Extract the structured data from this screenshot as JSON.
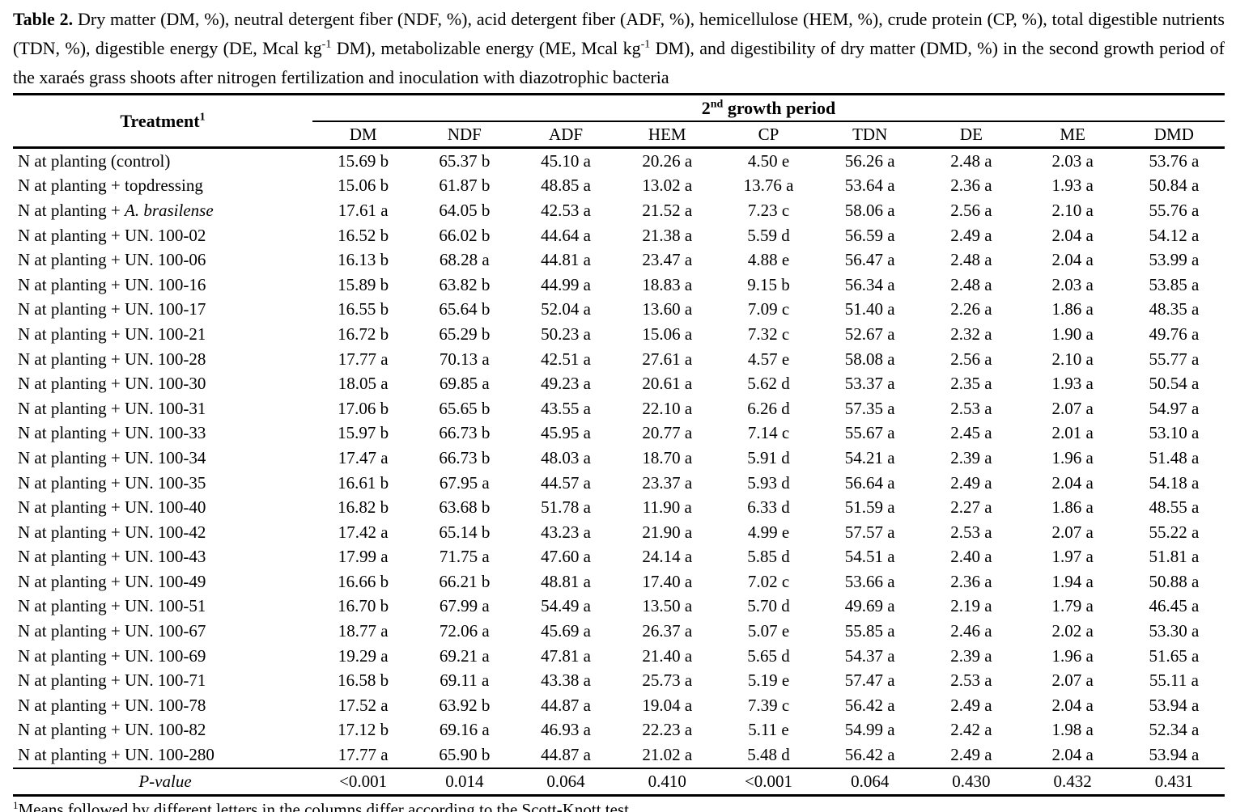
{
  "caption": {
    "label": "Table 2.",
    "seg1": " Dry matter (DM, %), neutral detergent fiber (NDF, %), acid detergent fiber (ADF, %), hemicellulose (HEM, %), crude protein (CP, %), total digestible nutrients (TDN, %), digestible energy (DE, Mcal kg",
    "sup1": "-1",
    "seg2": " DM), metabolizable energy (ME, Mcal kg",
    "sup2": "-1",
    "seg3": " DM), and digestibility of dry matter (DMD, %) in the second growth period of the xaraés grass shoots after nitrogen fertilization and inoculation with diazotrophic bacteria"
  },
  "table": {
    "treatment_header": "Treatment",
    "treatment_header_sup": "1",
    "group_header_num": "2",
    "group_header_sup": "nd",
    "group_header_rest": " growth period",
    "columns": [
      "DM",
      "NDF",
      "ADF",
      "HEM",
      "CP",
      "TDN",
      "DE",
      "ME",
      "DMD"
    ],
    "rows": [
      {
        "treatment": "N at planting (control)",
        "treatment_italic": "",
        "values": [
          "15.69 b",
          "65.37 b",
          "45.10 a",
          "20.26 a",
          "4.50 e",
          "56.26 a",
          "2.48 a",
          "2.03 a",
          "53.76 a"
        ]
      },
      {
        "treatment": "N at planting + topdressing",
        "treatment_italic": "",
        "values": [
          "15.06 b",
          "61.87 b",
          "48.85 a",
          "13.02 a",
          "13.76 a",
          "53.64 a",
          "2.36 a",
          "1.93 a",
          "50.84 a"
        ]
      },
      {
        "treatment": "N at planting + ",
        "treatment_italic": "A. brasilense",
        "values": [
          "17.61 a",
          "64.05 b",
          "42.53 a",
          "21.52 a",
          "7.23 c",
          "58.06 a",
          "2.56 a",
          "2.10 a",
          "55.76 a"
        ]
      },
      {
        "treatment": "N at planting + UN. 100-02",
        "treatment_italic": "",
        "values": [
          "16.52 b",
          "66.02 b",
          "44.64 a",
          "21.38 a",
          "5.59 d",
          "56.59 a",
          "2.49 a",
          "2.04 a",
          "54.12 a"
        ]
      },
      {
        "treatment": "N at planting + UN. 100-06",
        "treatment_italic": "",
        "values": [
          "16.13 b",
          "68.28 a",
          "44.81 a",
          "23.47 a",
          "4.88 e",
          "56.47 a",
          "2.48 a",
          "2.04 a",
          "53.99 a"
        ]
      },
      {
        "treatment": "N at planting + UN. 100-16",
        "treatment_italic": "",
        "values": [
          "15.89 b",
          "63.82 b",
          "44.99 a",
          "18.83 a",
          "9.15 b",
          "56.34 a",
          "2.48 a",
          "2.03 a",
          "53.85 a"
        ]
      },
      {
        "treatment": "N at planting + UN. 100-17",
        "treatment_italic": "",
        "values": [
          "16.55 b",
          "65.64 b",
          "52.04 a",
          "13.60 a",
          "7.09 c",
          "51.40 a",
          "2.26 a",
          "1.86 a",
          "48.35 a"
        ]
      },
      {
        "treatment": "N at planting + UN. 100-21",
        "treatment_italic": "",
        "values": [
          "16.72 b",
          "65.29 b",
          "50.23 a",
          "15.06 a",
          "7.32 c",
          "52.67 a",
          "2.32 a",
          "1.90 a",
          "49.76 a"
        ]
      },
      {
        "treatment": "N at planting + UN. 100-28",
        "treatment_italic": "",
        "values": [
          "17.77 a",
          "70.13 a",
          "42.51 a",
          "27.61 a",
          "4.57 e",
          "58.08 a",
          "2.56 a",
          "2.10 a",
          "55.77 a"
        ]
      },
      {
        "treatment": "N at planting + UN. 100-30",
        "treatment_italic": "",
        "values": [
          "18.05 a",
          "69.85 a",
          "49.23 a",
          "20.61 a",
          "5.62 d",
          "53.37 a",
          "2.35 a",
          "1.93 a",
          "50.54 a"
        ]
      },
      {
        "treatment": "N at planting + UN. 100-31",
        "treatment_italic": "",
        "values": [
          "17.06 b",
          "65.65 b",
          "43.55 a",
          "22.10 a",
          "6.26 d",
          "57.35 a",
          "2.53 a",
          "2.07 a",
          "54.97 a"
        ]
      },
      {
        "treatment": "N at planting + UN. 100-33",
        "treatment_italic": "",
        "values": [
          "15.97 b",
          "66.73 b",
          "45.95 a",
          "20.77 a",
          "7.14 c",
          "55.67 a",
          "2.45 a",
          "2.01 a",
          "53.10 a"
        ]
      },
      {
        "treatment": "N at planting + UN. 100-34",
        "treatment_italic": "",
        "values": [
          "17.47 a",
          "66.73 b",
          "48.03 a",
          "18.70 a",
          "5.91 d",
          "54.21 a",
          "2.39 a",
          "1.96 a",
          "51.48 a"
        ]
      },
      {
        "treatment": "N at planting + UN. 100-35",
        "treatment_italic": "",
        "values": [
          "16.61 b",
          "67.95 a",
          "44.57 a",
          "23.37 a",
          "5.93 d",
          "56.64 a",
          "2.49 a",
          "2.04 a",
          "54.18 a"
        ]
      },
      {
        "treatment": "N at planting + UN. 100-40",
        "treatment_italic": "",
        "values": [
          "16.82 b",
          "63.68 b",
          "51.78 a",
          "11.90 a",
          "6.33 d",
          "51.59 a",
          "2.27 a",
          "1.86 a",
          "48.55 a"
        ]
      },
      {
        "treatment": "N at planting + UN. 100-42",
        "treatment_italic": "",
        "values": [
          "17.42 a",
          "65.14 b",
          "43.23 a",
          "21.90 a",
          "4.99 e",
          "57.57 a",
          "2.53 a",
          "2.07 a",
          "55.22 a"
        ]
      },
      {
        "treatment": "N at planting + UN. 100-43",
        "treatment_italic": "",
        "values": [
          "17.99 a",
          "71.75 a",
          "47.60 a",
          "24.14 a",
          "5.85 d",
          "54.51 a",
          "2.40 a",
          "1.97 a",
          "51.81 a"
        ]
      },
      {
        "treatment": "N at planting + UN. 100-49",
        "treatment_italic": "",
        "values": [
          "16.66 b",
          "66.21 b",
          "48.81 a",
          "17.40 a",
          "7.02 c",
          "53.66 a",
          "2.36 a",
          "1.94 a",
          "50.88 a"
        ]
      },
      {
        "treatment": "N at planting + UN. 100-51",
        "treatment_italic": "",
        "values": [
          "16.70 b",
          "67.99 a",
          "54.49 a",
          "13.50 a",
          "5.70 d",
          "49.69 a",
          "2.19 a",
          "1.79 a",
          "46.45 a"
        ]
      },
      {
        "treatment": "N at planting + UN. 100-67",
        "treatment_italic": "",
        "values": [
          "18.77 a",
          "72.06 a",
          "45.69 a",
          "26.37 a",
          "5.07 e",
          "55.85 a",
          "2.46 a",
          "2.02 a",
          "53.30 a"
        ]
      },
      {
        "treatment": "N at planting + UN. 100-69",
        "treatment_italic": "",
        "values": [
          "19.29 a",
          "69.21 a",
          "47.81 a",
          "21.40 a",
          "5.65 d",
          "54.37 a",
          "2.39 a",
          "1.96 a",
          "51.65 a"
        ]
      },
      {
        "treatment": "N at planting + UN. 100-71",
        "treatment_italic": "",
        "values": [
          "16.58 b",
          "69.11 a",
          "43.38 a",
          "25.73 a",
          "5.19 e",
          "57.47 a",
          "2.53 a",
          "2.07 a",
          "55.11 a"
        ]
      },
      {
        "treatment": "N at planting + UN. 100-78",
        "treatment_italic": "",
        "values": [
          "17.52 a",
          "63.92 b",
          "44.87 a",
          "19.04 a",
          "7.39 c",
          "56.42 a",
          "2.49 a",
          "2.04 a",
          "53.94 a"
        ]
      },
      {
        "treatment": "N at planting + UN. 100-82",
        "treatment_italic": "",
        "values": [
          "17.12 b",
          "69.16 a",
          "46.93 a",
          "22.23 a",
          "5.11 e",
          "54.99 a",
          "2.42 a",
          "1.98 a",
          "52.34 a"
        ]
      },
      {
        "treatment": "N at planting + UN. 100-280",
        "treatment_italic": "",
        "values": [
          "17.77 a",
          "65.90 b",
          "44.87 a",
          "21.02 a",
          "5.48 d",
          "56.42 a",
          "2.49 a",
          "2.04 a",
          "53.94 a"
        ]
      }
    ],
    "pvalue_label": "P-value",
    "pvalues": [
      "<0.001",
      "0.014",
      "0.064",
      "0.410",
      "<0.001",
      "0.064",
      "0.430",
      "0.432",
      "0.431"
    ]
  },
  "footnote": {
    "sup": "1",
    "text": "Means followed by different letters in the columns differ according to the Scott-Knott test"
  }
}
